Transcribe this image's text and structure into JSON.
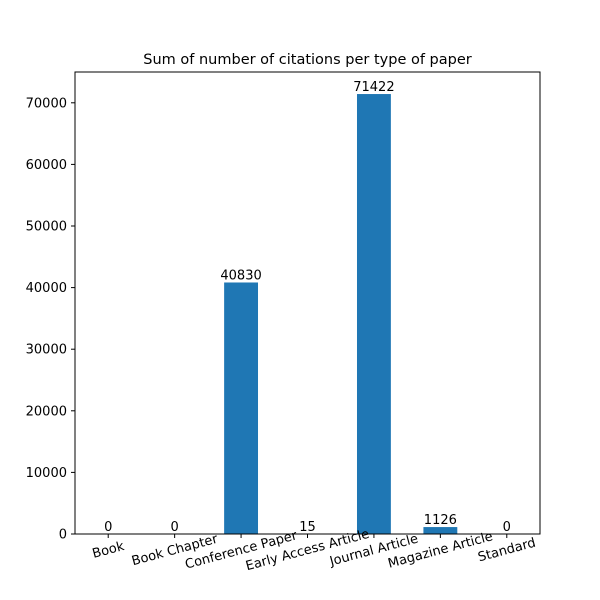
{
  "chart_data": {
    "type": "bar",
    "title": "Sum of number of citations per type of paper",
    "categories": [
      "Book",
      "Book Chapter",
      "Conference Paper",
      "Early Access Article",
      "Journal Article",
      "Magazine Article",
      "Standard"
    ],
    "values": [
      0,
      0,
      40830,
      15,
      71422,
      1126,
      0
    ],
    "data_labels": [
      "0",
      "0",
      "40830",
      "15",
      "71422",
      "1126",
      "0"
    ],
    "yticks": [
      0,
      10000,
      20000,
      30000,
      40000,
      50000,
      60000,
      70000
    ],
    "ylim": [
      0,
      75000
    ],
    "xlabel": "",
    "ylabel": "",
    "grid": false,
    "bar_color": "#1f77b4",
    "xtick_rotation_degrees": 15
  }
}
